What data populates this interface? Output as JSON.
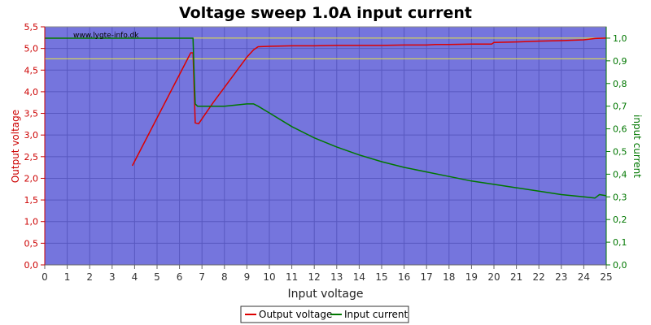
{
  "chart_data": {
    "type": "line",
    "title": "Voltage sweep 1.0A input current",
    "watermark": "www.lygte-info.dk",
    "xlabel": "Input voltage",
    "ylabel_left": "Output voltage",
    "ylabel_right": "input current",
    "xlim": [
      0,
      25
    ],
    "ylim_left": [
      0,
      5.5
    ],
    "ylim_right": [
      0,
      1.05
    ],
    "x_ticks": [
      "0",
      "1",
      "2",
      "3",
      "4",
      "5",
      "6",
      "7",
      "8",
      "9",
      "10",
      "11",
      "12",
      "13",
      "14",
      "15",
      "16",
      "17",
      "18",
      "19",
      "20",
      "21",
      "22",
      "23",
      "24",
      "25"
    ],
    "y_left_ticks": [
      "0,0",
      "0,5",
      "1,0",
      "1,5",
      "2,0",
      "2,5",
      "3,0",
      "3,5",
      "4,0",
      "4,5",
      "5,0",
      "5,5"
    ],
    "y_right_ticks": [
      "0,0",
      "0,1",
      "0,2",
      "0,3",
      "0,4",
      "0,5",
      "0,6",
      "0,7",
      "0,8",
      "0,9",
      "1,0"
    ],
    "y_left_tick_values": [
      0,
      0.5,
      1,
      1.5,
      2,
      2.5,
      3,
      3.5,
      4,
      4.5,
      5,
      5.5
    ],
    "y_right_tick_values": [
      0,
      0.1,
      0.2,
      0.3,
      0.4,
      0.5,
      0.6,
      0.7,
      0.8,
      0.9,
      1.0
    ],
    "grid": true,
    "legend_position": "bottom-center",
    "colors": {
      "plot_bg": "#7575dd",
      "grid": "#5858c0",
      "output_voltage": "#dd0000",
      "input_current": "#007700",
      "reference_line": "#e8e840"
    },
    "reference_lines_left": [
      5.24,
      4.76
    ],
    "series": [
      {
        "name": "Output voltage",
        "axis": "left",
        "x": [
          3.9,
          6.5,
          6.6,
          6.7,
          6.85,
          7.1,
          7.5,
          8.0,
          8.5,
          9.0,
          9.3,
          9.5,
          10.0,
          11,
          12,
          13,
          14,
          15,
          16,
          17,
          17.4,
          18,
          19,
          19.9,
          20,
          21,
          22,
          23,
          24,
          24.5,
          25
        ],
        "values": [
          2.29,
          4.9,
          4.9,
          3.28,
          3.26,
          3.45,
          3.75,
          4.1,
          4.45,
          4.8,
          4.97,
          5.04,
          5.05,
          5.06,
          5.06,
          5.07,
          5.07,
          5.07,
          5.08,
          5.08,
          5.09,
          5.09,
          5.1,
          5.1,
          5.14,
          5.15,
          5.17,
          5.18,
          5.2,
          5.23,
          5.24
        ]
      },
      {
        "name": "Input current",
        "axis": "right",
        "x": [
          0,
          4,
          5,
          6,
          6.5,
          6.6,
          6.65,
          6.7,
          6.8,
          7,
          8,
          9,
          9.3,
          9.5,
          10,
          11,
          12,
          13,
          14,
          15,
          16,
          17,
          18,
          19,
          20,
          21,
          22,
          23,
          24,
          24.5,
          24.7,
          25
        ],
        "values": [
          1.0,
          1.0,
          1.0,
          1.0,
          1.0,
          1.0,
          0.85,
          0.71,
          0.7,
          0.7,
          0.7,
          0.71,
          0.71,
          0.7,
          0.67,
          0.61,
          0.56,
          0.52,
          0.485,
          0.455,
          0.43,
          0.41,
          0.39,
          0.37,
          0.355,
          0.34,
          0.325,
          0.31,
          0.3,
          0.295,
          0.31,
          0.305
        ]
      }
    ]
  }
}
